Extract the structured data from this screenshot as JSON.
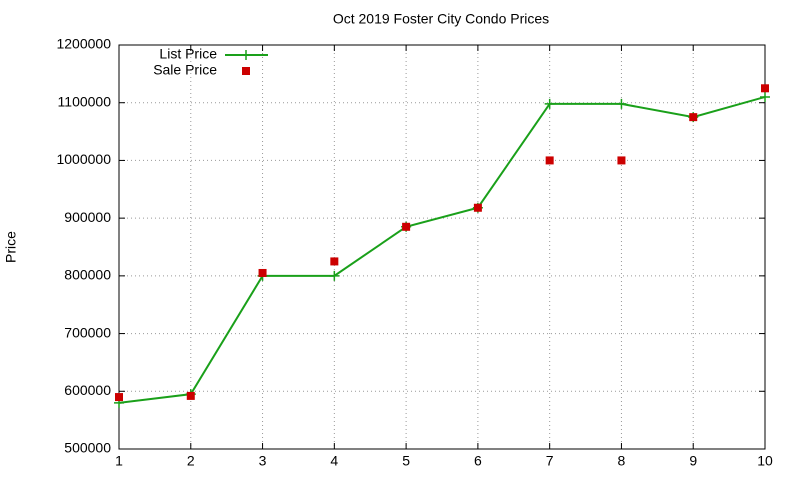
{
  "chart_data": {
    "type": "line",
    "title": "Oct 2019 Foster City Condo Prices",
    "y_label": "Price",
    "x": [
      1,
      2,
      3,
      4,
      5,
      6,
      7,
      8,
      9,
      10
    ],
    "series": [
      {
        "name": "List Price",
        "color": "#1aa01a",
        "style": "linespoints",
        "values": [
          580000,
          595000,
          800000,
          800000,
          885000,
          918000,
          1098000,
          1098000,
          1075000,
          1110000
        ]
      },
      {
        "name": "Sale Price",
        "color": "#cc0000",
        "style": "points",
        "values": [
          590000,
          592000,
          805000,
          825000,
          885000,
          918000,
          1000000,
          1000000,
          1075000,
          1125000
        ]
      }
    ],
    "xlim": [
      1,
      10
    ],
    "xticks": [
      1,
      2,
      3,
      4,
      5,
      6,
      7,
      8,
      9,
      10
    ],
    "ylim": [
      500000,
      1200000
    ],
    "yticks": [
      500000,
      600000,
      700000,
      800000,
      900000,
      1000000,
      1100000,
      1200000
    ],
    "grid": true,
    "legend": "top-left"
  }
}
